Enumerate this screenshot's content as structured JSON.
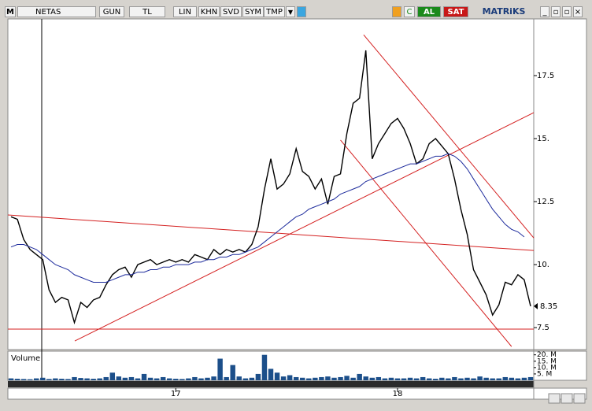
{
  "toolbar": {
    "menu": "M",
    "symbol": "NETAS",
    "period": "GUN",
    "currency": "TL",
    "scale": "LIN",
    "b1": "KHN",
    "b2": "SVD",
    "b3": "SYM",
    "b4": "TMP",
    "buy": "AL",
    "sell": "SAT",
    "brand": "MATRiKS"
  },
  "chart_data": [
    {
      "type": "line",
      "categories": [
        null,
        null,
        null,
        null,
        null,
        null,
        null,
        null,
        null,
        null,
        null,
        null,
        null,
        null,
        null,
        null,
        null,
        null,
        null,
        null,
        null,
        null,
        null,
        null,
        null,
        null,
        "17",
        null,
        null,
        null,
        null,
        null,
        null,
        null,
        null,
        null,
        null,
        null,
        null,
        null,
        null,
        null,
        null,
        null,
        null,
        null,
        null,
        null,
        null,
        null,
        null,
        null,
        null,
        null,
        null,
        null,
        null,
        null,
        null,
        null,
        null,
        "18",
        null,
        null,
        null,
        null,
        null,
        null,
        null,
        null,
        null,
        null,
        null,
        null,
        null,
        null,
        null,
        null,
        null,
        null,
        null,
        null,
        null
      ],
      "series": [
        {
          "color": "#000000",
          "values": [
            11.9,
            11.8,
            11.0,
            10.6,
            10.4,
            10.2,
            9.0,
            8.5,
            8.7,
            8.6,
            7.7,
            8.5,
            8.3,
            8.6,
            8.7,
            9.2,
            9.6,
            9.8,
            9.9,
            9.5,
            10.0,
            10.1,
            10.2,
            10.0,
            10.1,
            10.2,
            10.1,
            10.2,
            10.1,
            10.4,
            10.3,
            10.2,
            10.6,
            10.4,
            10.6,
            10.5,
            10.6,
            10.5,
            10.8,
            11.5,
            13.0,
            14.2,
            13.0,
            13.2,
            13.6,
            14.6,
            13.7,
            13.5,
            13.0,
            13.4,
            12.4,
            13.5,
            13.6,
            15.2,
            16.4,
            16.6,
            18.5,
            14.2,
            14.8,
            15.2,
            15.6,
            15.8,
            15.4,
            14.8,
            14.0,
            14.2,
            14.8,
            15.0,
            14.7,
            14.4,
            13.4,
            12.2,
            11.2,
            9.8,
            9.3,
            8.8,
            8.0,
            8.4,
            9.3,
            9.2,
            9.6,
            9.4,
            8.35
          ]
        },
        {
          "color": "#1c2a9c",
          "values": [
            10.7,
            10.8,
            10.8,
            10.7,
            10.6,
            10.4,
            10.2,
            10.0,
            9.9,
            9.8,
            9.6,
            9.5,
            9.4,
            9.3,
            9.3,
            9.3,
            9.4,
            9.5,
            9.6,
            9.6,
            9.7,
            9.7,
            9.8,
            9.8,
            9.9,
            9.9,
            10.0,
            10.0,
            10.0,
            10.1,
            10.1,
            10.2,
            10.2,
            10.3,
            10.3,
            10.4,
            10.4,
            10.5,
            10.6,
            10.7,
            10.9,
            11.1,
            11.3,
            11.5,
            11.7,
            11.9,
            12.0,
            12.2,
            12.3,
            12.4,
            12.5,
            12.6,
            12.8,
            12.9,
            13.0,
            13.1,
            13.3,
            13.4,
            13.5,
            13.6,
            13.7,
            13.8,
            13.9,
            14.0,
            14.0,
            14.1,
            14.2,
            14.3,
            14.3,
            14.4,
            14.3,
            14.1,
            13.8,
            13.4,
            13.0,
            12.6,
            12.2,
            11.9,
            11.6,
            11.4,
            11.3,
            11.1,
            null
          ]
        }
      ],
      "trend_lines": [
        {
          "color": "#d42020",
          "x": [
            -0.5,
            82.5
          ],
          "y": [
            7.44,
            7.44
          ]
        },
        {
          "color": "#d42020",
          "x": [
            -0.5,
            82.5
          ],
          "y": [
            11.97,
            10.56
          ]
        },
        {
          "color": "#d42020",
          "x": [
            10.06,
            82.5
          ],
          "y": [
            6.97,
            16.03
          ]
        },
        {
          "color": "#d42020",
          "x": [
            55.65,
            82.5
          ],
          "y": [
            19.12,
            11.06
          ]
        },
        {
          "color": "#d42020",
          "x": [
            52.0,
            79.0
          ],
          "y": [
            14.94,
            6.75
          ]
        }
      ],
      "ylim": [
        6.66,
        19.75
      ],
      "yticks": [
        7.5,
        {
          "value": 10,
          "label": "10."
        },
        12.5,
        {
          "value": 15,
          "label": "15."
        },
        17.5
      ],
      "grid": false
    },
    {
      "type": "bar",
      "title": "Volume",
      "color": "#1c4f8a",
      "values": [
        1.5,
        1.2,
        1.0,
        0.8,
        1.5,
        2.0,
        1.0,
        1.5,
        1.2,
        1.0,
        2.5,
        1.8,
        1.5,
        1.2,
        1.5,
        2.5,
        6.0,
        3.0,
        2.0,
        2.5,
        1.5,
        5.0,
        2.0,
        1.5,
        2.5,
        1.5,
        1.2,
        1.0,
        1.5,
        2.5,
        1.5,
        2.0,
        3.0,
        17.0,
        2.5,
        12.0,
        3.0,
        1.5,
        2.0,
        5.0,
        20.0,
        9.0,
        6.0,
        3.0,
        4.0,
        2.5,
        2.0,
        1.5,
        2.0,
        2.5,
        3.0,
        2.0,
        2.5,
        3.5,
        2.0,
        5.0,
        3.0,
        2.0,
        2.5,
        1.5,
        2.0,
        1.5,
        1.5,
        2.0,
        1.5,
        2.5,
        1.5,
        1.2,
        2.0,
        1.5,
        2.5,
        1.5,
        2.0,
        1.5,
        3.0,
        2.0,
        1.5,
        1.5,
        2.5,
        2.0,
        1.5,
        2.0,
        2.5
      ],
      "ylim": [
        0,
        22.9
      ],
      "yticks": [
        {
          "value": 20,
          "label": "20. M"
        },
        {
          "value": 15,
          "label": "15. M"
        },
        {
          "value": 10,
          "label": "10. M"
        },
        {
          "value": 5,
          "label": "5. M"
        }
      ]
    }
  ]
}
